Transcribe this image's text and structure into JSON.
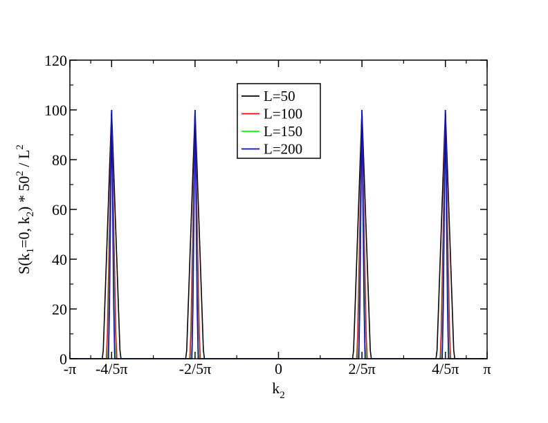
{
  "chart_data": {
    "type": "line",
    "title": "",
    "xlabel": {
      "main": "k",
      "sub": "2"
    },
    "ylabel": {
      "p1": "S(k",
      "s1": "1",
      "p2": "=0, k",
      "s2": "2",
      "p3": ") * 50",
      "s3": "2",
      "p4": " / L",
      "s4": "2"
    },
    "xlim": [
      -3.14159,
      3.14159
    ],
    "ylim": [
      0,
      120
    ],
    "yticks": [
      0,
      20,
      40,
      60,
      80,
      100,
      120
    ],
    "xticks": [
      {
        "v": -3.14159,
        "label": "-π"
      },
      {
        "v": -2.51327,
        "label": "-4/5π"
      },
      {
        "v": -1.25664,
        "label": "-2/5π"
      },
      {
        "v": 0,
        "label": "0"
      },
      {
        "v": 1.25664,
        "label": "2/5π"
      },
      {
        "v": 2.51327,
        "label": "4/5π"
      },
      {
        "v": 3.14159,
        "label": "π"
      }
    ],
    "peak_positions": [
      -2.51327,
      -1.25664,
      1.25664,
      2.51327
    ],
    "grid": false,
    "legend_position": "top-center",
    "series": [
      {
        "name": "L=50",
        "color": "#000000",
        "L": 50,
        "peak": 100
      },
      {
        "name": "L=100",
        "color": "#ff0000",
        "L": 100,
        "peak": 100
      },
      {
        "name": "L=150",
        "color": "#00ff00",
        "L": 150,
        "peak": 100
      },
      {
        "name": "L=200",
        "color": "#0000ff",
        "L": 200,
        "peak": 100
      }
    ]
  }
}
